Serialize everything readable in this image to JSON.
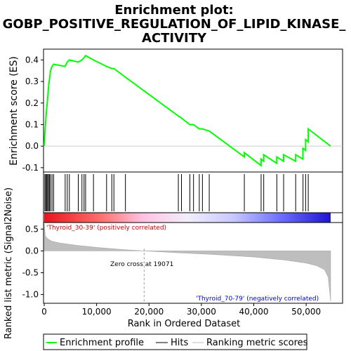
{
  "title_line1": "Enrichment plot:",
  "title_line2": "GOBP_POSITIVE_REGULATION_OF_LIPID_KINASE_",
  "title_line3": "ACTIVITY",
  "es_ylabel": "Enrichment score (ES)",
  "rank_ylabel": "Ranked list metric (Signal2Noise)",
  "xlabel": "Rank in Ordered Dataset",
  "pos_label": "'Thyroid_30-39' (positively correlated)",
  "neg_label": "'Thyroid_70-79' (negatively correlated)",
  "zero_cross_label": "Zero cross at 19071",
  "legend": {
    "enrichment": "Enrichment profile",
    "hits": "Hits",
    "ranking": "Ranking metric scores"
  },
  "colors": {
    "enrichment": "#00ff00",
    "hits": "#000000",
    "ranking": "#bebebe",
    "positive": "#ff0000",
    "negative": "#0000ff"
  },
  "chart_data": {
    "type": "line",
    "x_range": [
      0,
      57000
    ],
    "es_ylim": [
      -0.12,
      0.45
    ],
    "es_yticks": [
      "-0.1",
      "0.0",
      "0.1",
      "0.2",
      "0.3",
      "0.4"
    ],
    "es_ytick_values": [
      -0.1,
      0.0,
      0.1,
      0.2,
      0.3,
      0.4
    ],
    "rank_ylim": [
      -1.2,
      0.65
    ],
    "rank_yticks": [
      "-1.0",
      "-0.5",
      "0.0",
      "0.5"
    ],
    "rank_ytick_values": [
      -1.0,
      -0.5,
      0.0,
      0.5
    ],
    "xticks": [
      "0",
      "10,000",
      "20,000",
      "30,000",
      "40,000",
      "50,000"
    ],
    "xtick_values": [
      0,
      10000,
      20000,
      30000,
      40000,
      50000
    ],
    "total_genes": 54675,
    "zero_cross": 19071,
    "hits": [
      120,
      300,
      450,
      650,
      800,
      1000,
      1200,
      1500,
      1800,
      4000,
      4400,
      4800,
      6500,
      7200,
      7600,
      7900,
      9400,
      11900,
      12900,
      13300,
      15500,
      25600,
      26200,
      27800,
      28500,
      29600,
      30200,
      31500,
      38200,
      41400,
      41900,
      44400,
      45700,
      48000,
      49400,
      49900,
      50400
    ],
    "es_profile": {
      "x": [
        0,
        120,
        300,
        450,
        650,
        800,
        1000,
        1200,
        1500,
        1800,
        4000,
        4400,
        4800,
        6500,
        7200,
        7600,
        7900,
        9400,
        11900,
        12900,
        13300,
        15500,
        25600,
        26200,
        27800,
        28500,
        29600,
        30200,
        31500,
        38200,
        38201,
        41400,
        41401,
        41900,
        41901,
        44400,
        44401,
        45700,
        45701,
        48000,
        48001,
        49400,
        49401,
        49900,
        49901,
        50400,
        50401,
        54675
      ],
      "y": [
        0.0,
        0.06,
        0.12,
        0.17,
        0.22,
        0.27,
        0.31,
        0.35,
        0.37,
        0.38,
        0.37,
        0.39,
        0.4,
        0.39,
        0.4,
        0.41,
        0.42,
        0.4,
        0.37,
        0.36,
        0.36,
        0.32,
        0.14,
        0.13,
        0.1,
        0.1,
        0.08,
        0.08,
        0.07,
        -0.05,
        -0.03,
        -0.09,
        -0.06,
        -0.07,
        -0.04,
        -0.08,
        -0.05,
        -0.07,
        -0.04,
        -0.07,
        -0.04,
        -0.06,
        -0.01,
        -0.02,
        0.03,
        0.02,
        0.08,
        0.0
      ]
    },
    "ranking_metric": {
      "x": [
        0,
        200,
        600,
        1500,
        3000,
        6000,
        10000,
        15000,
        19071,
        25000,
        32000,
        40000,
        46000,
        50000,
        52000,
        53500,
        54200,
        54675
      ],
      "y": [
        0.62,
        0.35,
        0.28,
        0.22,
        0.18,
        0.13,
        0.08,
        0.03,
        0.0,
        -0.04,
        -0.08,
        -0.14,
        -0.21,
        -0.28,
        -0.34,
        -0.43,
        -0.6,
        -1.15
      ]
    }
  }
}
